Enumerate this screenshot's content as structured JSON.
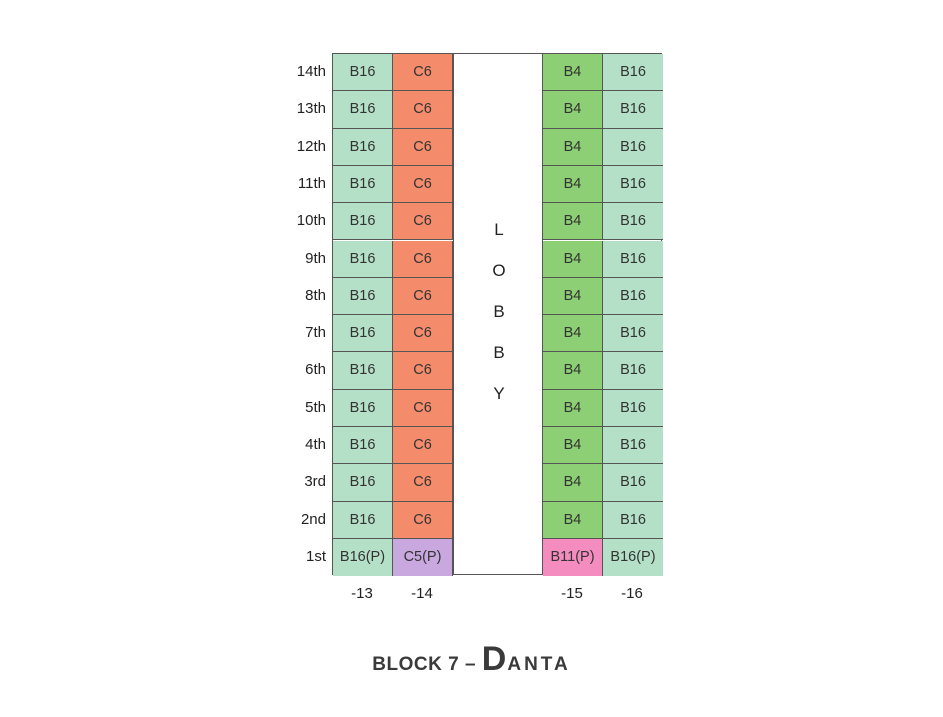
{
  "floors": [
    "14th",
    "13th",
    "12th",
    "11th",
    "10th",
    "9th",
    "8th",
    "7th",
    "6th",
    "5th",
    "4th",
    "3rd",
    "2nd",
    "1st"
  ],
  "columns": [
    "-13",
    "-14",
    "-15",
    "-16"
  ],
  "units": {
    "col13": [
      "B16",
      "B16",
      "B16",
      "B16",
      "B16",
      "B16",
      "B16",
      "B16",
      "B16",
      "B16",
      "B16",
      "B16",
      "B16",
      "B16(P)"
    ],
    "col14": [
      "C6",
      "C6",
      "C6",
      "C6",
      "C6",
      "C6",
      "C6",
      "C6",
      "C6",
      "C6",
      "C6",
      "C6",
      "C6",
      "C5(P)"
    ],
    "col15": [
      "B4",
      "B4",
      "B4",
      "B4",
      "B4",
      "B4",
      "B4",
      "B4",
      "B4",
      "B4",
      "B4",
      "B4",
      "B4",
      "B11(P)"
    ],
    "col16": [
      "B16",
      "B16",
      "B16",
      "B16",
      "B16",
      "B16",
      "B16",
      "B16",
      "B16",
      "B16",
      "B16",
      "B16",
      "B16",
      "B16(P)"
    ]
  },
  "lobby_letters": [
    "L",
    "O",
    "B",
    "B",
    "Y"
  ],
  "colors": {
    "B16": "#b4e0c8",
    "C6": "#f48c6c",
    "B4": "#8ccf74",
    "C5(P)": "#c8a8de",
    "B11(P)": "#f48cc0",
    "B16(P)": "#b4e0c8"
  },
  "title": {
    "part1": "BLOCK 7 – ",
    "part2_first": "D",
    "part2_rest": "ANTA"
  }
}
